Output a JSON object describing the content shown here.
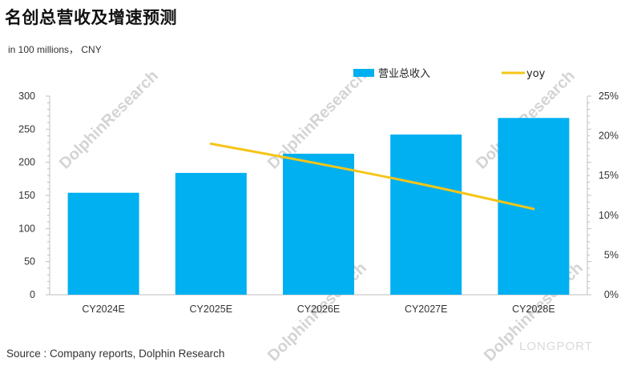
{
  "title": "名创总营收及增速预测",
  "unit_label": "in 100 millions， CNY",
  "source": "Source : Company reports, Dolphin Research",
  "watermark": {
    "text": "DolphinResearch",
    "logo": "LONGPORT"
  },
  "colors": {
    "bar": "#00b0f0",
    "line": "#f5c518",
    "axis": "#bfbfbf"
  },
  "chart_data": {
    "type": "bar",
    "categories": [
      "CY2024E",
      "CY2025E",
      "CY2026E",
      "CY2027E",
      "CY2028E"
    ],
    "series": [
      {
        "name": "营业总收入",
        "type": "bar",
        "axis": "left",
        "values": [
          154,
          184,
          213,
          242,
          267
        ]
      },
      {
        "name": "yoy",
        "type": "line",
        "axis": "right",
        "values": [
          null,
          0.19,
          0.165,
          0.138,
          0.108
        ]
      }
    ],
    "y_left": {
      "lim": [
        0,
        300
      ],
      "ticks": [
        0,
        50,
        100,
        150,
        200,
        250,
        300
      ]
    },
    "y_right": {
      "lim": [
        0,
        0.25
      ],
      "ticks": [
        "0%",
        "5%",
        "10%",
        "15%",
        "20%",
        "25%"
      ]
    },
    "legend_position": "top-right",
    "grid": false
  }
}
